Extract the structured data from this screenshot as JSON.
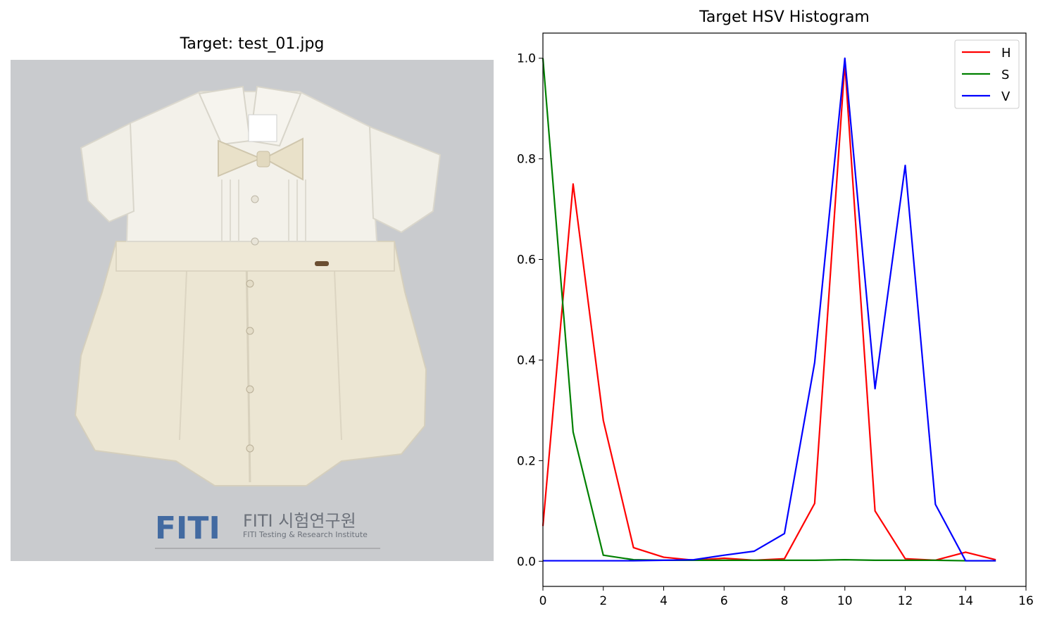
{
  "image_panel": {
    "title": "Target: test_01.jpg",
    "photo_subject": "cream-colored baby romper with short-sleeve shirt and bow tie",
    "watermark": {
      "logo": "FITI",
      "korean": "FITI 시험연구원",
      "english": "FITI Testing & Research Institute"
    }
  },
  "colors": {
    "H": "#ff0000",
    "S": "#008000",
    "V": "#0000ff",
    "background_photo": "#c9cbce",
    "garment": "#efeadb"
  },
  "chart_data": {
    "type": "line",
    "title": "Target HSV Histogram",
    "xlabel": "",
    "ylabel": "",
    "xlim": [
      0,
      16
    ],
    "ylim": [
      -0.05,
      1.05
    ],
    "x_ticks": [
      "0",
      "2",
      "4",
      "6",
      "8",
      "10",
      "12",
      "14",
      "16"
    ],
    "y_ticks": [
      "0.0",
      "0.2",
      "0.4",
      "0.6",
      "0.8",
      "1.0"
    ],
    "x": [
      0,
      1,
      2,
      3,
      4,
      5,
      6,
      7,
      8,
      9,
      10,
      11,
      12,
      13,
      14,
      15
    ],
    "series": [
      {
        "name": "H",
        "values": [
          0.07,
          0.75,
          0.28,
          0.027,
          0.008,
          0.002,
          0.006,
          0.002,
          0.005,
          0.115,
          0.99,
          0.1,
          0.005,
          0.002,
          0.018,
          0.003
        ]
      },
      {
        "name": "S",
        "values": [
          1.0,
          0.257,
          0.012,
          0.003,
          0.002,
          0.002,
          0.002,
          0.002,
          0.002,
          0.002,
          0.003,
          0.002,
          0.002,
          0.002,
          0.001,
          0.001
        ]
      },
      {
        "name": "V",
        "values": [
          0.001,
          0.001,
          0.001,
          0.001,
          0.002,
          0.003,
          0.012,
          0.02,
          0.055,
          0.395,
          1.0,
          0.343,
          0.787,
          0.113,
          0.001,
          0.001
        ]
      }
    ],
    "legend_position": "top-right",
    "grid": false
  }
}
